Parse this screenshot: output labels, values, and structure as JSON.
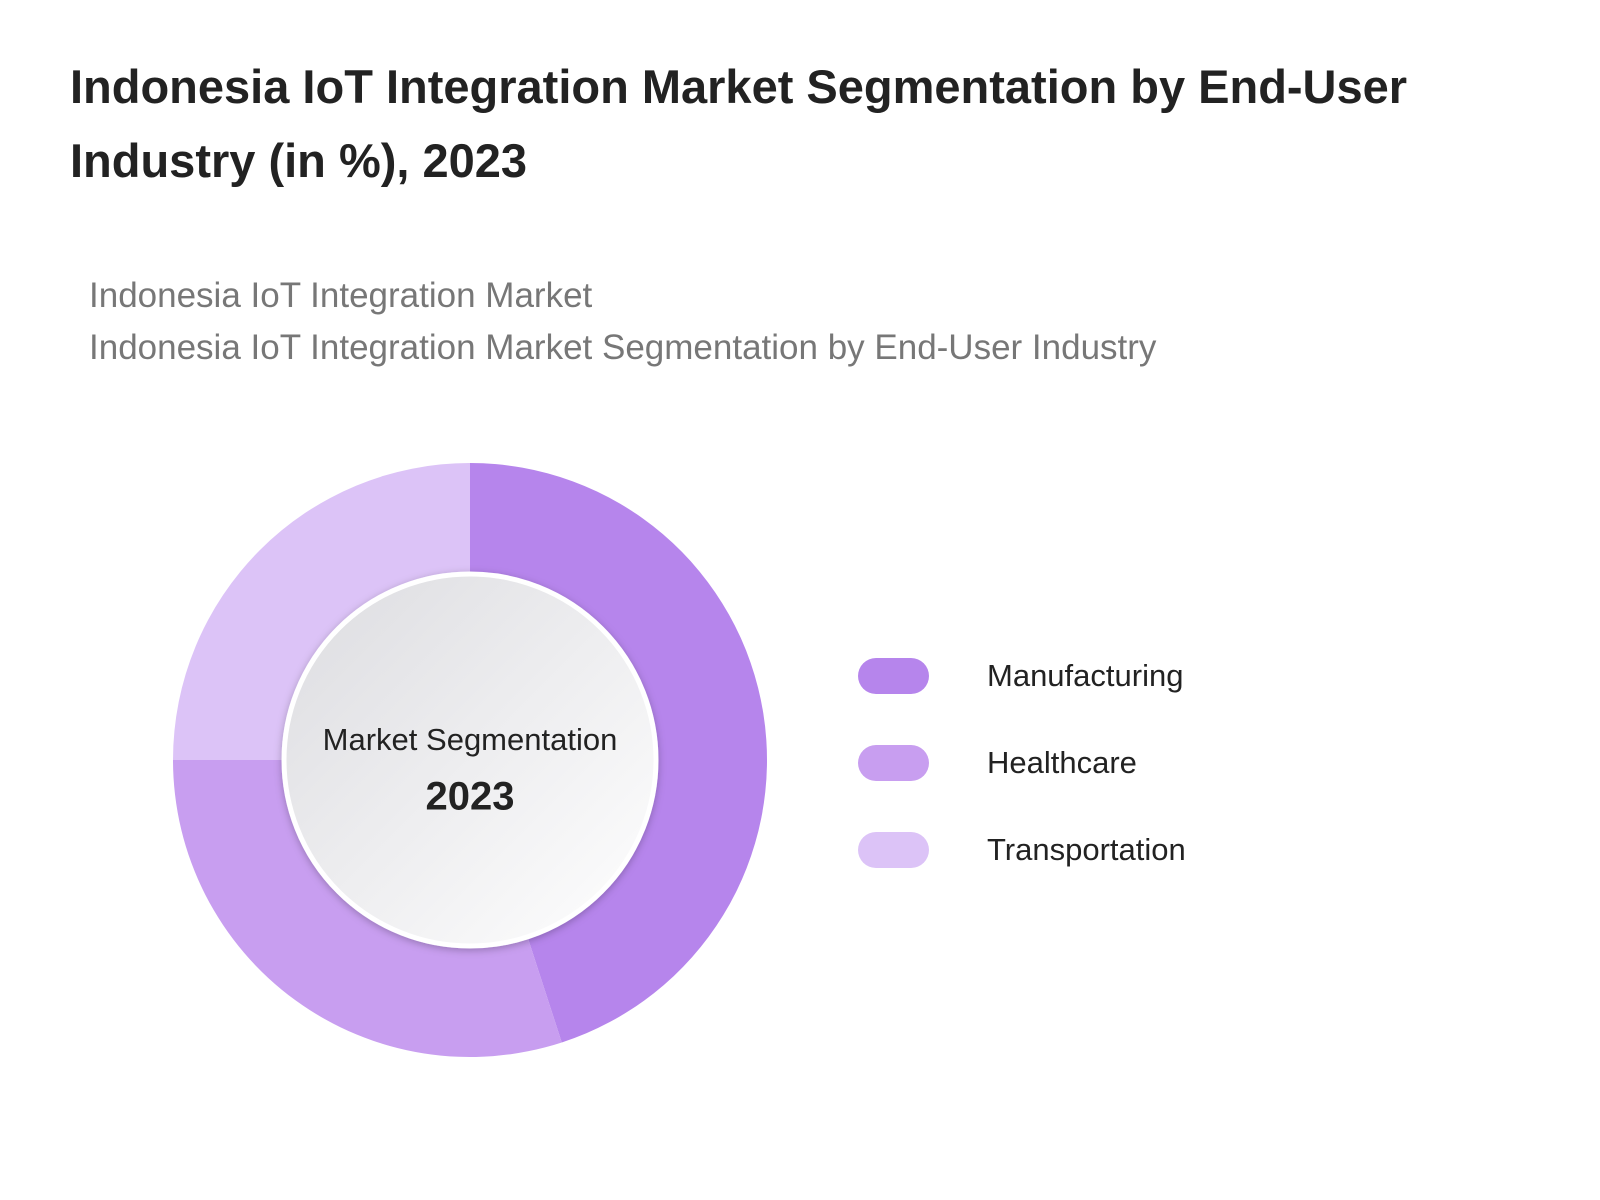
{
  "chart_data": {
    "type": "pie",
    "title": "Indonesia IoT Integration Market Segmentation by End-User Industry (in %), 2023",
    "subtitle": [
      "Indonesia IoT Integration Market",
      "Indonesia IoT Integration Market Segmentation by End-User Industry"
    ],
    "center_label": "Market Segmentation",
    "center_value": "2023",
    "categories": [
      "Manufacturing",
      "Healthcare",
      "Transportation"
    ],
    "values": [
      45,
      30,
      25
    ],
    "colors": [
      "#b685ec",
      "#c89ef0",
      "#dcc3f7"
    ],
    "legend": "right"
  }
}
